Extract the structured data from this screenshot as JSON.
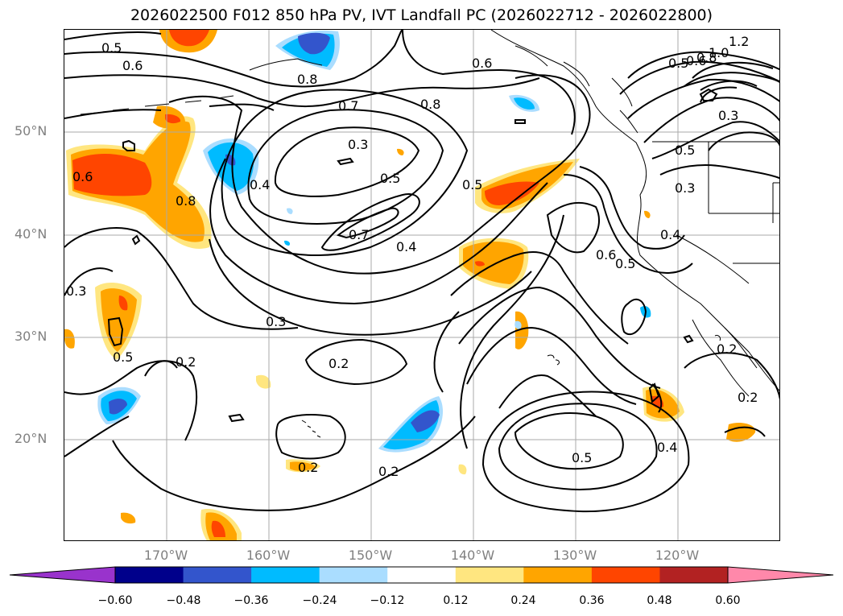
{
  "title": "2026022500 F012 850 hPa PV, IVT Landfall PC (2026022712 - 2026022800)",
  "latitude_labels": [
    "50°N",
    "40°N",
    "30°N",
    "20°N"
  ],
  "longitude_labels": [
    "170°W",
    "160°W",
    "150°W",
    "140°W",
    "130°W",
    "120°W"
  ],
  "colorbar": {
    "ticks": [
      "−0.60",
      "−0.48",
      "−0.36",
      "−0.24",
      "−0.12",
      "0.12",
      "0.24",
      "0.36",
      "0.48",
      "0.60"
    ],
    "colors": [
      "#9933cc",
      "#00008b",
      "#3355cc",
      "#00bbff",
      "#aaddff",
      "#ffffff",
      "#ffe680",
      "#ffa500",
      "#ff4500",
      "#b22222",
      "#ff88aa"
    ]
  },
  "contour_labels": [
    {
      "text": "0.5"
    },
    {
      "text": "0.6"
    },
    {
      "text": "0.8"
    },
    {
      "text": "0.6"
    },
    {
      "text": "0.7"
    },
    {
      "text": "0.8"
    },
    {
      "text": "1.0"
    },
    {
      "text": "1.2"
    },
    {
      "text": "0.8"
    },
    {
      "text": "0.6"
    },
    {
      "text": "0.5"
    },
    {
      "text": "0.3"
    },
    {
      "text": "0.3"
    },
    {
      "text": "0.6"
    },
    {
      "text": "0.4"
    },
    {
      "text": "0.5"
    },
    {
      "text": "0.5"
    },
    {
      "text": "0.8"
    },
    {
      "text": "0.7"
    },
    {
      "text": "0.4"
    },
    {
      "text": "0.5"
    },
    {
      "text": "0.3"
    },
    {
      "text": "0.6"
    },
    {
      "text": "0.5"
    },
    {
      "text": "0.4"
    },
    {
      "text": "0.3"
    },
    {
      "text": "0.3"
    },
    {
      "text": "0.2"
    },
    {
      "text": "0.5"
    },
    {
      "text": "0.2"
    },
    {
      "text": "0.2"
    },
    {
      "text": "0.2"
    },
    {
      "text": "0.2"
    },
    {
      "text": "0.5"
    },
    {
      "text": "0.4"
    },
    {
      "text": "0.2"
    }
  ]
}
